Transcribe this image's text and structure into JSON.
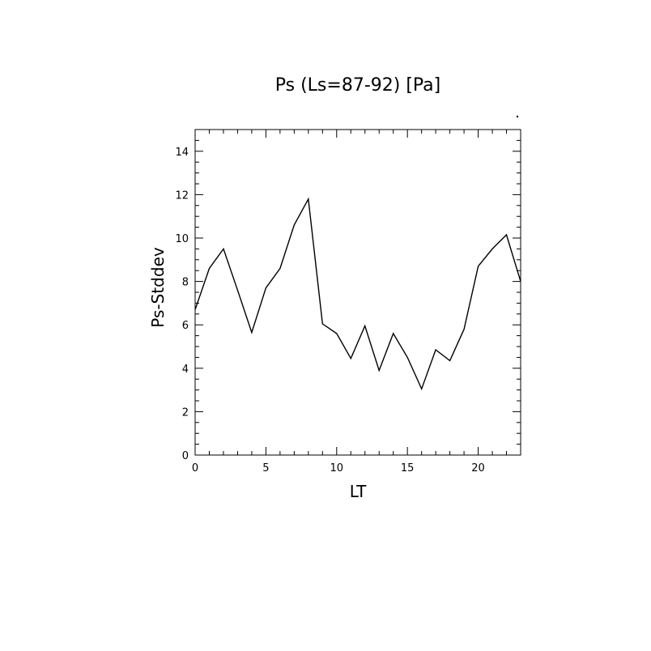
{
  "chart_data": {
    "type": "line",
    "title": "Ps (Ls=87-92) [Pa]",
    "xlabel": "LT",
    "ylabel": "Ps-Stddev",
    "xlim": [
      0,
      23
    ],
    "ylim": [
      0,
      15
    ],
    "x_ticks": [
      0,
      5,
      10,
      15,
      20
    ],
    "y_ticks": [
      0,
      2,
      4,
      6,
      8,
      10,
      12,
      14
    ],
    "x_minor_step": 1,
    "y_minor_step": 0.5,
    "grid": false,
    "series": [
      {
        "x": [
          0,
          1,
          2,
          3,
          4,
          5,
          6,
          7,
          8,
          9,
          10,
          11,
          12,
          13,
          14,
          15,
          16,
          17,
          18,
          19,
          20,
          21,
          22,
          23
        ],
        "values": [
          6.7,
          8.6,
          9.5,
          7.6,
          5.65,
          7.7,
          8.6,
          10.6,
          11.8,
          6.05,
          5.6,
          4.45,
          5.95,
          3.9,
          5.6,
          4.5,
          3.05,
          4.85,
          4.35,
          5.8,
          8.7,
          9.5,
          10.15,
          8.0
        ]
      }
    ],
    "color": "#000000"
  }
}
